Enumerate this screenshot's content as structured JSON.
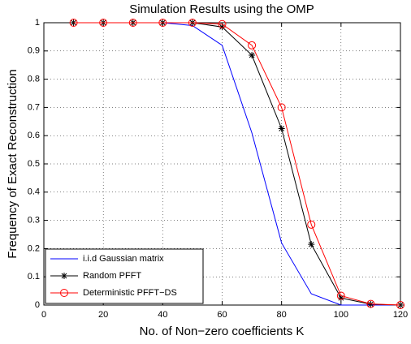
{
  "chart_data": {
    "type": "line",
    "title": "Simulation Results using the OMP",
    "xlabel": "No. of Non−zero coefficients K",
    "ylabel": "Frequency of Exact Reconstruction",
    "x": [
      10,
      20,
      30,
      40,
      50,
      60,
      70,
      80,
      90,
      100,
      110,
      120
    ],
    "series": [
      {
        "name": "i.i.d Gaussian matrix",
        "color": "#0000ff",
        "marker": "none",
        "values": [
          1,
          1,
          1,
          1,
          0.99,
          0.92,
          0.61,
          0.22,
          0.04,
          0,
          0,
          0
        ]
      },
      {
        "name": "Random PFFT",
        "color": "#000000",
        "marker": "*",
        "values": [
          1,
          1,
          1,
          1,
          1,
          0.985,
          0.885,
          0.625,
          0.215,
          0.025,
          0.003,
          0
        ]
      },
      {
        "name": "Deterministic PFFT−DS",
        "color": "#ff0000",
        "marker": "o",
        "values": [
          1,
          1,
          1,
          1,
          1,
          0.995,
          0.92,
          0.7,
          0.285,
          0.033,
          0.004,
          0
        ]
      }
    ],
    "xlim": [
      0,
      120
    ],
    "xticks": [
      0,
      20,
      40,
      60,
      80,
      100,
      120
    ],
    "ylim": [
      0,
      1
    ],
    "yticks": [
      0,
      0.1,
      0.2,
      0.3,
      0.4,
      0.5,
      0.6,
      0.7,
      0.8,
      0.9,
      1
    ],
    "grid": true,
    "legend": "lower left"
  }
}
